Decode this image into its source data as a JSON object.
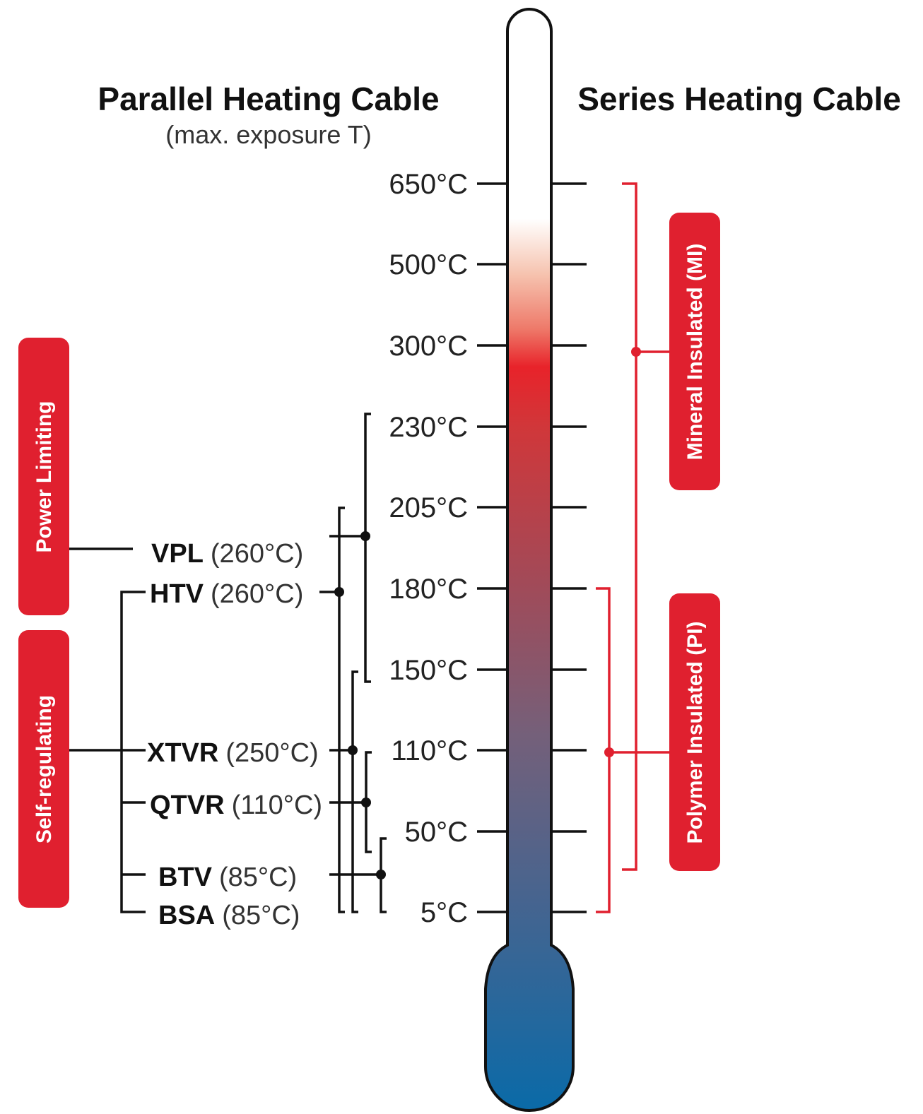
{
  "titles": {
    "parallel": "Parallel Heating Cable",
    "parallel_sub": "(max. exposure T)",
    "series": "Series Heating Cable"
  },
  "scale": [
    "650°C",
    "500°C",
    "300°C",
    "230°C",
    "205°C",
    "180°C",
    "150°C",
    "110°C",
    "50°C",
    "5°C"
  ],
  "categories": {
    "power_limiting": "Power Limiting",
    "self_regulating": "Self-regulating",
    "mineral_insulated": "Mineral Insulated (MI)",
    "polymer_insulated": "Polymer Insulated (PI)"
  },
  "cables": [
    {
      "name": "VPL",
      "temp": "(260°C)"
    },
    {
      "name": "HTV",
      "temp": "(260°C)"
    },
    {
      "name": "XTVR",
      "temp": "(250°C)"
    },
    {
      "name": "QTVR",
      "temp": "(110°C)"
    },
    {
      "name": "BTV",
      "temp": "(85°C)"
    },
    {
      "name": "BSA",
      "temp": "(85°C)"
    }
  ],
  "colors": {
    "accent_red": "#e0202f",
    "thermo_top": "#ffffff",
    "thermo_hot": "#e8232a",
    "thermo_cold": "#0a6aa8"
  }
}
